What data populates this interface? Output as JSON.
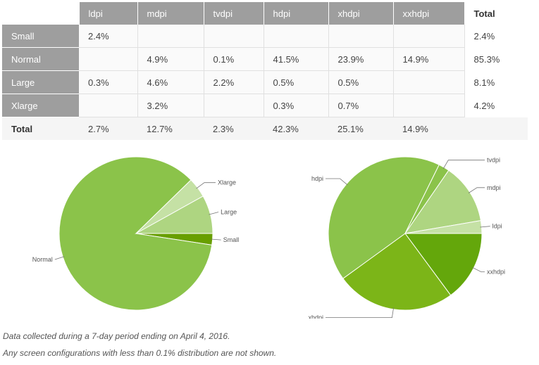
{
  "table": {
    "columns": [
      "ldpi",
      "mdpi",
      "tvdpi",
      "hdpi",
      "xhdpi",
      "xxhdpi"
    ],
    "total_header": "Total",
    "rows": [
      {
        "label": "Small",
        "cells": [
          "2.4%",
          "",
          "",
          "",
          "",
          ""
        ],
        "total": "2.4%"
      },
      {
        "label": "Normal",
        "cells": [
          "",
          "4.9%",
          "0.1%",
          "41.5%",
          "23.9%",
          "14.9%"
        ],
        "total": "85.3%"
      },
      {
        "label": "Large",
        "cells": [
          "0.3%",
          "4.6%",
          "2.2%",
          "0.5%",
          "0.5%",
          ""
        ],
        "total": "8.1%"
      },
      {
        "label": "Xlarge",
        "cells": [
          "",
          "3.2%",
          "",
          "0.3%",
          "0.7%",
          ""
        ],
        "total": "4.2%"
      }
    ],
    "footer": {
      "label": "Total",
      "cells": [
        "2.7%",
        "12.7%",
        "2.3%",
        "42.3%",
        "25.1%",
        "14.9%"
      ]
    }
  },
  "chart_data": [
    {
      "type": "pie",
      "title": "",
      "categories": [
        "Small",
        "Normal",
        "Xlarge",
        "Large"
      ],
      "values": [
        2.4,
        85.3,
        4.2,
        8.1
      ],
      "colors": [
        "#689f00",
        "#8bc34a",
        "#c5e1a5",
        "#aed581"
      ]
    },
    {
      "type": "pie",
      "title": "",
      "categories": [
        "xxhdpi",
        "xhdpi",
        "hdpi",
        "tvdpi",
        "mdpi",
        "ldpi"
      ],
      "values": [
        14.9,
        25.1,
        42.3,
        2.3,
        12.7,
        2.7
      ],
      "colors": [
        "#64a70b",
        "#7cb518",
        "#8bc34a",
        "#8bc34a",
        "#aed581",
        "#c5e1a5"
      ]
    }
  ],
  "footnotes": [
    "Data collected during a 7-day period ending on April 4, 2016.",
    "Any screen configurations with less than 0.1% distribution are not shown."
  ]
}
